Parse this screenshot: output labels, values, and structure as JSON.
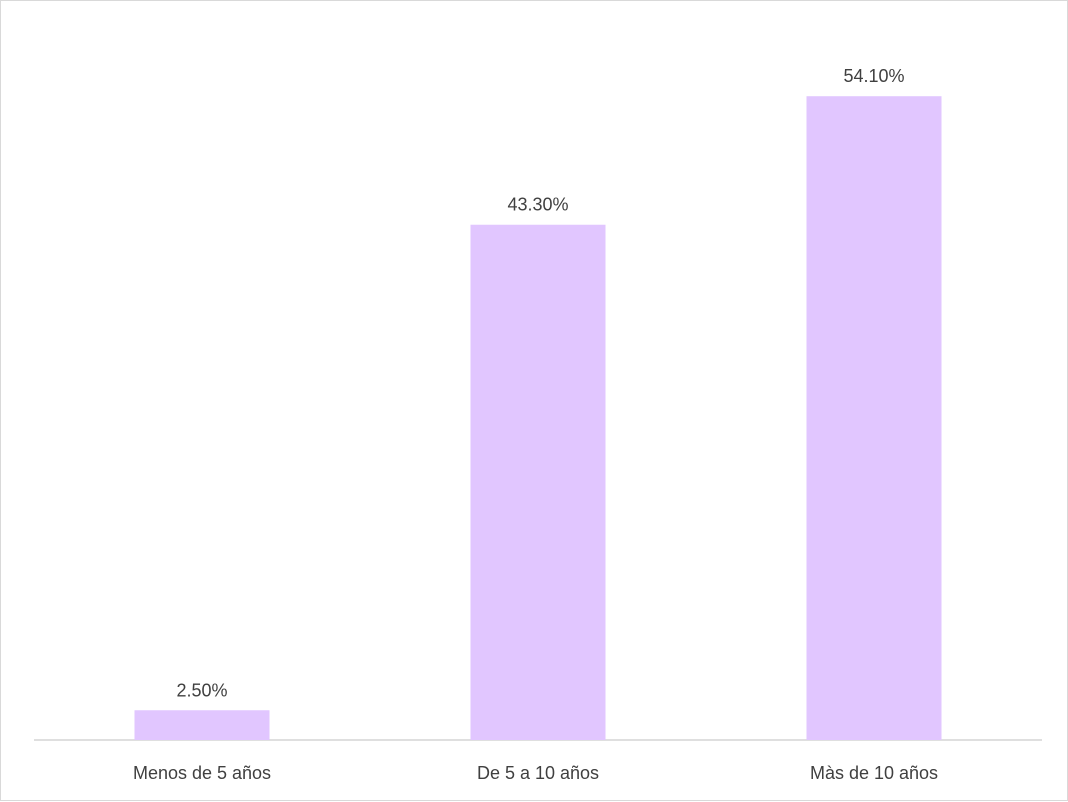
{
  "chart_data": {
    "type": "bar",
    "categories": [
      "Menos de 5 años",
      "De 5 a 10 años",
      "Màs de 10 años"
    ],
    "values": [
      2.5,
      43.3,
      54.1
    ],
    "data_labels": [
      "2.50%",
      "43.30%",
      "54.10%"
    ],
    "value_unit": "%",
    "ylim": [
      0,
      60
    ],
    "grid": false,
    "legend": "none",
    "bar_color": "#E1C6FF",
    "axis_color": "#BFBFBF",
    "text_color": "#404040"
  }
}
